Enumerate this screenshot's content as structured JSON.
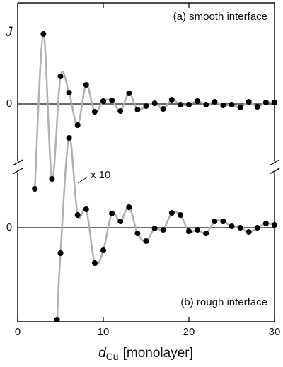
{
  "chart_data": [
    {
      "type": "scatter",
      "title": "(a) smooth interface",
      "ylabel": "J",
      "x": [
        2,
        3,
        4,
        5,
        6,
        7,
        8,
        9,
        10,
        11,
        12,
        13,
        14,
        15,
        16,
        17,
        18,
        19,
        20,
        21,
        22,
        23,
        24,
        25,
        26,
        27,
        28,
        29,
        30
      ],
      "values": [
        -1.2,
        0.99,
        -1.06,
        0.39,
        0.16,
        -0.3,
        0.27,
        -0.11,
        0.04,
        0.05,
        -0.1,
        0.15,
        -0.08,
        -0.03,
        0.01,
        -0.07,
        0.06,
        -0.01,
        -0.01,
        0.04,
        -0.01,
        0.03,
        -0.02,
        -0.01,
        -0.05,
        0.03,
        -0.04,
        0.02,
        0.02
      ],
      "xlim": [
        0,
        30
      ],
      "ylim": [
        -1.3,
        1.43
      ],
      "yticks": [
        0
      ],
      "color": "#000000",
      "curve_color": "#b0b0b0"
    },
    {
      "type": "scatter",
      "title": "(b) rough interface",
      "annotation": "x 10",
      "x": [
        4.6,
        5,
        6,
        7,
        8,
        9,
        10,
        11,
        12,
        13,
        14,
        15,
        16,
        17,
        18,
        19,
        20,
        21,
        22,
        23,
        24,
        25,
        26,
        27,
        28,
        29,
        30
      ],
      "values": [
        -1.3,
        -0.36,
        1.27,
        0.18,
        0.26,
        -0.5,
        -0.32,
        0.2,
        0.09,
        0.29,
        -0.08,
        -0.19,
        -0.01,
        -0.03,
        0.21,
        0.18,
        -0.05,
        -0.03,
        -0.08,
        0.09,
        0.09,
        0.02,
        0,
        -0.06,
        0,
        0.06,
        0.04
      ],
      "xlim": [
        0,
        30
      ],
      "ylim": [
        -1.33,
        1.35
      ],
      "yticks": [
        0
      ],
      "xticks": [
        0,
        10,
        20,
        30
      ],
      "xlabel": {
        "symbol": "d",
        "subscript": "Cu",
        "unit": "[monolayer]"
      },
      "color": "#000000",
      "curve_color": "#b0b0b0"
    }
  ]
}
